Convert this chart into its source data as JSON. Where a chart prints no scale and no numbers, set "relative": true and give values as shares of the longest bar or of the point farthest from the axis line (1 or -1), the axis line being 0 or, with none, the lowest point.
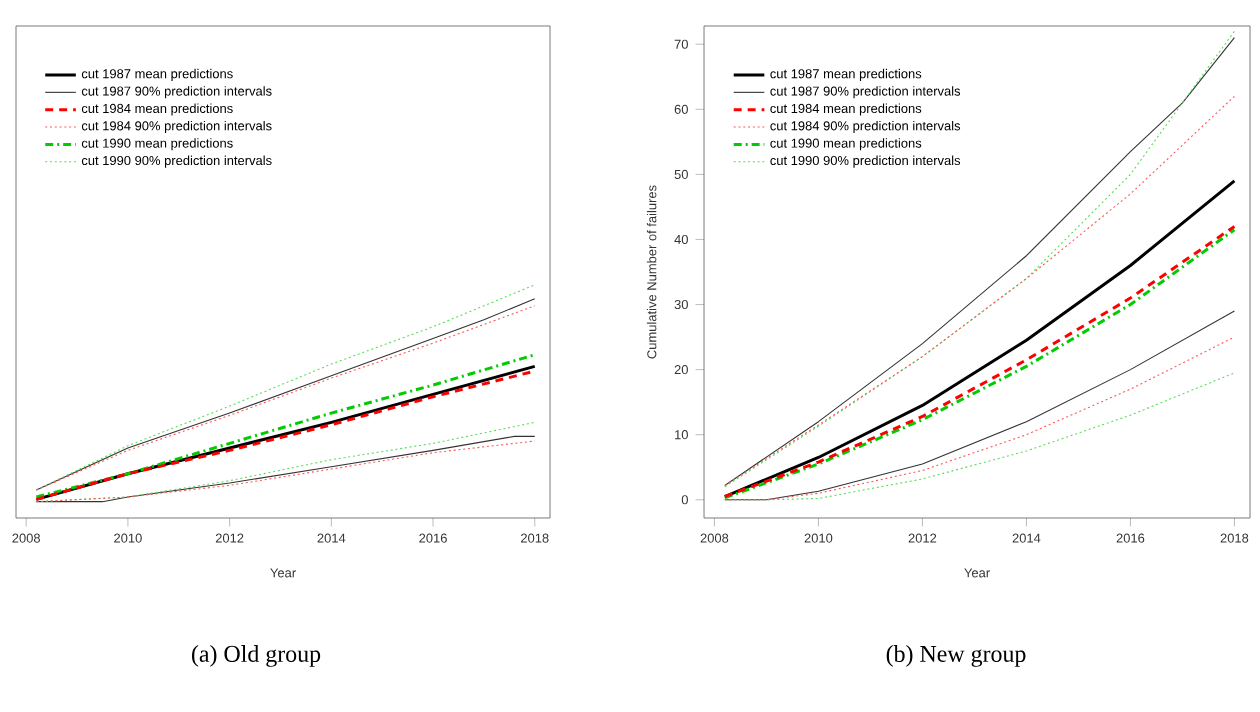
{
  "chart_data": [
    {
      "type": "line",
      "title": "(a) Old group",
      "xlabel": "Year",
      "relative": true,
      "tick_labels": "x",
      "xlim": [
        2007.8,
        2018.3
      ],
      "xticks": [
        2008,
        2010,
        2012,
        2014,
        2016,
        2018
      ],
      "legend": "top left",
      "grid": false,
      "marker": "none",
      "series": [
        {
          "name": "cut 1987 mean predictions",
          "color": "#000000",
          "line_style": "solid",
          "x": [
            2008.2,
            2010,
            2012,
            2014,
            2016,
            2018
          ],
          "values": [
            0.08,
            0.19,
            0.3,
            0.41,
            0.53,
            0.65
          ]
        },
        {
          "name": "cut 1987 90% prediction intervals",
          "color": "#333333",
          "line_style": "solid",
          "x": [
            2008.2,
            2010,
            2012,
            2014,
            2016,
            2017,
            2018
          ],
          "values": [
            0.12,
            0.3,
            0.45,
            0.61,
            0.77,
            0.85,
            0.94
          ]
        },
        {
          "color": "#333333",
          "line_style": "solid",
          "x": [
            2008.2,
            2009.5,
            2010,
            2012,
            2014,
            2016,
            2017.6,
            2018
          ],
          "values": [
            0.07,
            0.07,
            0.09,
            0.15,
            0.22,
            0.29,
            0.35,
            0.35
          ]
        },
        {
          "name": "cut 1984 mean predictions",
          "color": "#ff0000",
          "line_style": "dashed",
          "x": [
            2008.2,
            2010,
            2012,
            2014,
            2016,
            2018
          ],
          "values": [
            0.08,
            0.19,
            0.29,
            0.4,
            0.52,
            0.63
          ]
        },
        {
          "name": "cut 1984 90% prediction intervals",
          "color": "#ff5555",
          "line_style": "dotted",
          "x": [
            2008.2,
            2010,
            2012,
            2014,
            2016,
            2018
          ],
          "values": [
            0.12,
            0.29,
            0.44,
            0.6,
            0.75,
            0.91
          ]
        },
        {
          "color": "#ff5555",
          "line_style": "dotted",
          "x": [
            2008.2,
            2010,
            2012,
            2014,
            2016,
            2018
          ],
          "values": [
            0.07,
            0.09,
            0.14,
            0.21,
            0.28,
            0.33
          ]
        },
        {
          "name": "cut 1990 mean predictions",
          "color": "#00cc00",
          "line_style": "dashdot",
          "x": [
            2008.2,
            2010,
            2012,
            2014,
            2016,
            2018
          ],
          "values": [
            0.09,
            0.19,
            0.32,
            0.45,
            0.57,
            0.7
          ]
        },
        {
          "name": "cut 1990 90% prediction intervals",
          "color": "#55dd55",
          "line_style": "dotted",
          "x": [
            2008.2,
            2010,
            2012,
            2014,
            2016,
            2018
          ],
          "values": [
            0.12,
            0.31,
            0.48,
            0.66,
            0.82,
            1
          ]
        },
        {
          "color": "#55dd55",
          "line_style": "dotted",
          "x": [
            2008.2,
            2010,
            2012,
            2014,
            2016,
            2018
          ],
          "values": [
            0.07,
            0.09,
            0.16,
            0.25,
            0.32,
            0.41
          ]
        }
      ]
    },
    {
      "type": "line",
      "title": "(b) New group",
      "xlabel": "Year",
      "ylabel": "Cumulative Number of failures",
      "xlim": [
        2007.8,
        2018.3
      ],
      "xticks": [
        2008,
        2010,
        2012,
        2014,
        2016,
        2018
      ],
      "ylim": [
        -2.8,
        72.8
      ],
      "yticks": [
        0,
        10,
        20,
        30,
        40,
        50,
        60,
        70
      ],
      "legend": "top left",
      "grid": false,
      "marker": "none",
      "series": [
        {
          "name": "cut 1987 mean predictions",
          "color": "#000000",
          "line_style": "solid",
          "x": [
            2008.2,
            2010,
            2012,
            2014,
            2016,
            2018
          ],
          "values": [
            0.5,
            6.5,
            14.5,
            24.5,
            36,
            49
          ]
        },
        {
          "name": "cut 1987 90% prediction intervals",
          "color": "#333333",
          "line_style": "solid",
          "x": [
            2008.2,
            2010,
            2012,
            2014,
            2016,
            2017,
            2018
          ],
          "values": [
            2.2,
            12,
            24,
            37.5,
            53.5,
            61,
            71
          ]
        },
        {
          "color": "#333333",
          "line_style": "solid",
          "x": [
            2008.2,
            2009,
            2010,
            2012,
            2014,
            2016,
            2018
          ],
          "values": [
            0,
            0,
            1.3,
            5.5,
            12,
            20,
            29
          ]
        },
        {
          "name": "cut 1984 mean predictions",
          "color": "#ff0000",
          "line_style": "dashed",
          "x": [
            2008.2,
            2010,
            2012,
            2014,
            2016,
            2018
          ],
          "values": [
            0.5,
            5.8,
            12.8,
            21.5,
            31,
            42
          ]
        },
        {
          "name": "cut 1984 90% prediction intervals",
          "color": "#ff5555",
          "line_style": "dotted",
          "x": [
            2008.2,
            2010,
            2012,
            2014,
            2016,
            2018
          ],
          "values": [
            2.2,
            11.5,
            22,
            34,
            47,
            62
          ]
        },
        {
          "color": "#ff5555",
          "line_style": "dotted",
          "x": [
            2008.2,
            2009,
            2010,
            2012,
            2014,
            2016,
            2018
          ],
          "values": [
            0,
            0,
            1,
            4.5,
            10,
            17,
            25
          ]
        },
        {
          "name": "cut 1990 mean predictions",
          "color": "#00cc00",
          "line_style": "dashdot",
          "x": [
            2008.2,
            2010,
            2012,
            2014,
            2016,
            2018
          ],
          "values": [
            0.3,
            5.5,
            12.3,
            20.5,
            30,
            41.5
          ]
        },
        {
          "name": "cut 1990 90% prediction intervals",
          "color": "#55dd55",
          "line_style": "dotted",
          "x": [
            2008.2,
            2010,
            2012,
            2014,
            2016,
            2018
          ],
          "values": [
            2,
            11.3,
            22,
            34,
            50,
            72
          ]
        },
        {
          "color": "#55dd55",
          "line_style": "dotted",
          "x": [
            2008.2,
            2009,
            2010,
            2012,
            2014,
            2016,
            2018
          ],
          "values": [
            0,
            0,
            0.2,
            3.2,
            7.5,
            13,
            19.5
          ]
        }
      ]
    }
  ]
}
